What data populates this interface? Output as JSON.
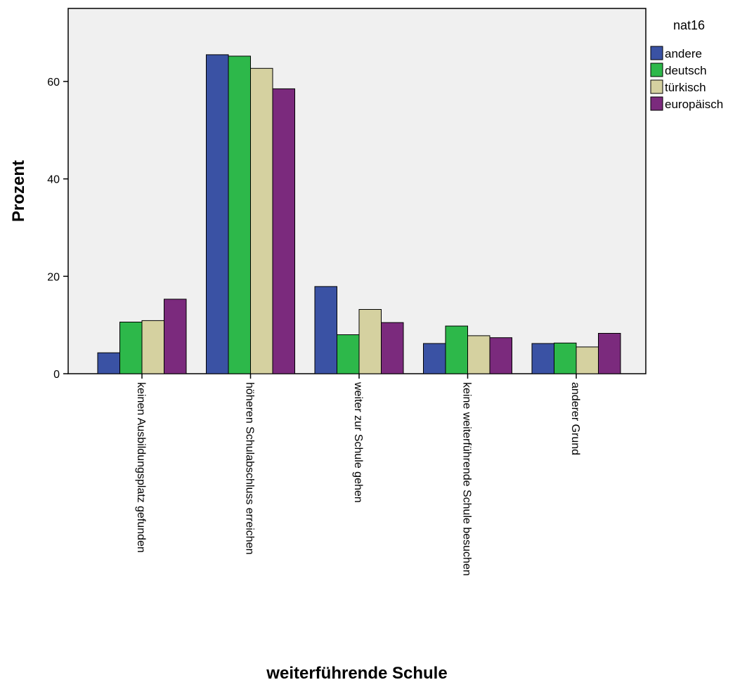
{
  "chart_data": {
    "type": "bar",
    "title": "",
    "xlabel": "weiterführende Schule",
    "ylabel": "Prozent",
    "ylim": [
      0,
      75
    ],
    "yticks": [
      0,
      20,
      40,
      60
    ],
    "grid": false,
    "legend_title": "nat16",
    "legend_position": "right",
    "categories": [
      "keinen Ausbildungsplatz gefunden",
      "höheren Schulabschluss erreichen",
      "weiter zur Schule gehen",
      "keine weiterführende Schule besuchen",
      "anderer Grund"
    ],
    "series": [
      {
        "name": "andere",
        "color": "#3a52a4",
        "values": [
          4.3,
          65.5,
          17.9,
          6.2,
          6.2
        ]
      },
      {
        "name": "deutsch",
        "color": "#2db84a",
        "values": [
          10.6,
          65.2,
          8.0,
          9.8,
          6.3
        ]
      },
      {
        "name": "türkisch",
        "color": "#d5d1a0",
        "values": [
          10.9,
          62.7,
          13.2,
          7.8,
          5.5
        ]
      },
      {
        "name": "europäisch",
        "color": "#7b2a7d",
        "values": [
          15.3,
          58.5,
          10.5,
          7.4,
          8.3
        ]
      }
    ],
    "plot_background": "#f0f0f0"
  }
}
